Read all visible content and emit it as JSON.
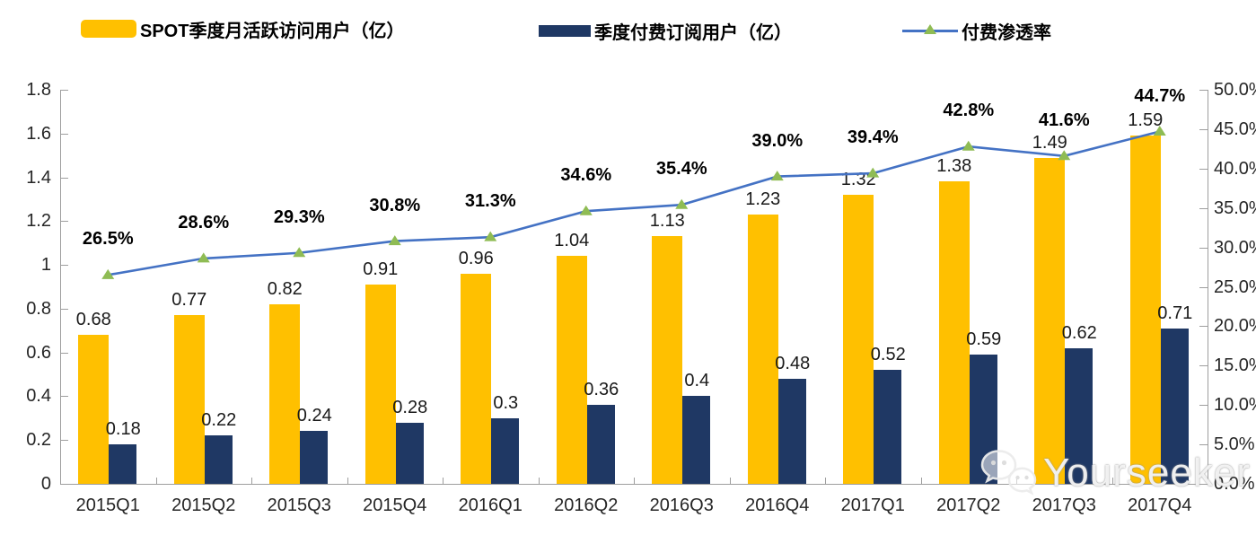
{
  "legend": [
    {
      "label": "SPOT季度月活跃访问用户（亿）",
      "swatch": "bar",
      "color": "#FFC000"
    },
    {
      "label": "季度付费订阅用户（亿）",
      "swatch": "bar",
      "color": "#1F3864"
    },
    {
      "label": "付费渗透率",
      "swatch": "line",
      "line_color": "#4472C4",
      "marker_color": "#8FBC54"
    }
  ],
  "chart_data": {
    "type": "bar",
    "subtype": "grouped-bars-with-line-combo",
    "categories": [
      "2015Q1",
      "2015Q2",
      "2015Q3",
      "2015Q4",
      "2016Q1",
      "2016Q2",
      "2016Q3",
      "2016Q4",
      "2017Q1",
      "2017Q2",
      "2017Q3",
      "2017Q4"
    ],
    "series": [
      {
        "name": "SPOT季度月活跃访问用户（亿）",
        "type": "bar",
        "axis": "left",
        "color": "#FFC000",
        "values": [
          0.68,
          0.77,
          0.82,
          0.91,
          0.96,
          1.04,
          1.13,
          1.23,
          1.32,
          1.38,
          1.49,
          1.59
        ],
        "labels": [
          "0.68",
          "0.77",
          "0.82",
          "0.91",
          "0.96",
          "1.04",
          "1.13",
          "1.23",
          "1.32",
          "1.38",
          "1.49",
          "1.59"
        ]
      },
      {
        "name": "季度付费订阅用户（亿）",
        "type": "bar",
        "axis": "left",
        "color": "#1F3864",
        "values": [
          0.18,
          0.22,
          0.24,
          0.28,
          0.3,
          0.36,
          0.4,
          0.48,
          0.52,
          0.59,
          0.62,
          0.71
        ],
        "labels": [
          "0.18",
          "0.22",
          "0.24",
          "0.28",
          "0.3",
          "0.36",
          "0.4",
          "0.48",
          "0.52",
          "0.59",
          "0.62",
          "0.71"
        ]
      },
      {
        "name": "付费渗透率",
        "type": "line",
        "axis": "right",
        "color": "#4472C4",
        "marker": "triangle",
        "marker_color": "#8FBC54",
        "values": [
          26.5,
          28.6,
          29.3,
          30.8,
          31.3,
          34.6,
          35.4,
          39.0,
          39.4,
          42.8,
          41.6,
          44.7
        ],
        "labels": [
          "26.5%",
          "28.6%",
          "29.3%",
          "30.8%",
          "31.3%",
          "34.6%",
          "35.4%",
          "39.0%",
          "39.4%",
          "42.8%",
          "41.6%",
          "44.7%"
        ]
      }
    ],
    "left_axis": {
      "min": 0,
      "max": 1.8,
      "step": 0.2,
      "ticks": [
        "0",
        "0.2",
        "0.4",
        "0.6",
        "0.8",
        "1",
        "1.2",
        "1.4",
        "1.6",
        "1.8"
      ]
    },
    "right_axis": {
      "min": 0,
      "max": 50,
      "step": 5,
      "ticks": [
        "0.0%",
        "5.0%",
        "10.0%",
        "15.0%",
        "20.0%",
        "25.0%",
        "30.0%",
        "35.0%",
        "40.0%",
        "45.0%",
        "50.0%"
      ]
    },
    "grid": false,
    "legend_position": "top",
    "title": ""
  },
  "watermark": {
    "text": "Yourseeker",
    "icon": "wechat-icon"
  }
}
